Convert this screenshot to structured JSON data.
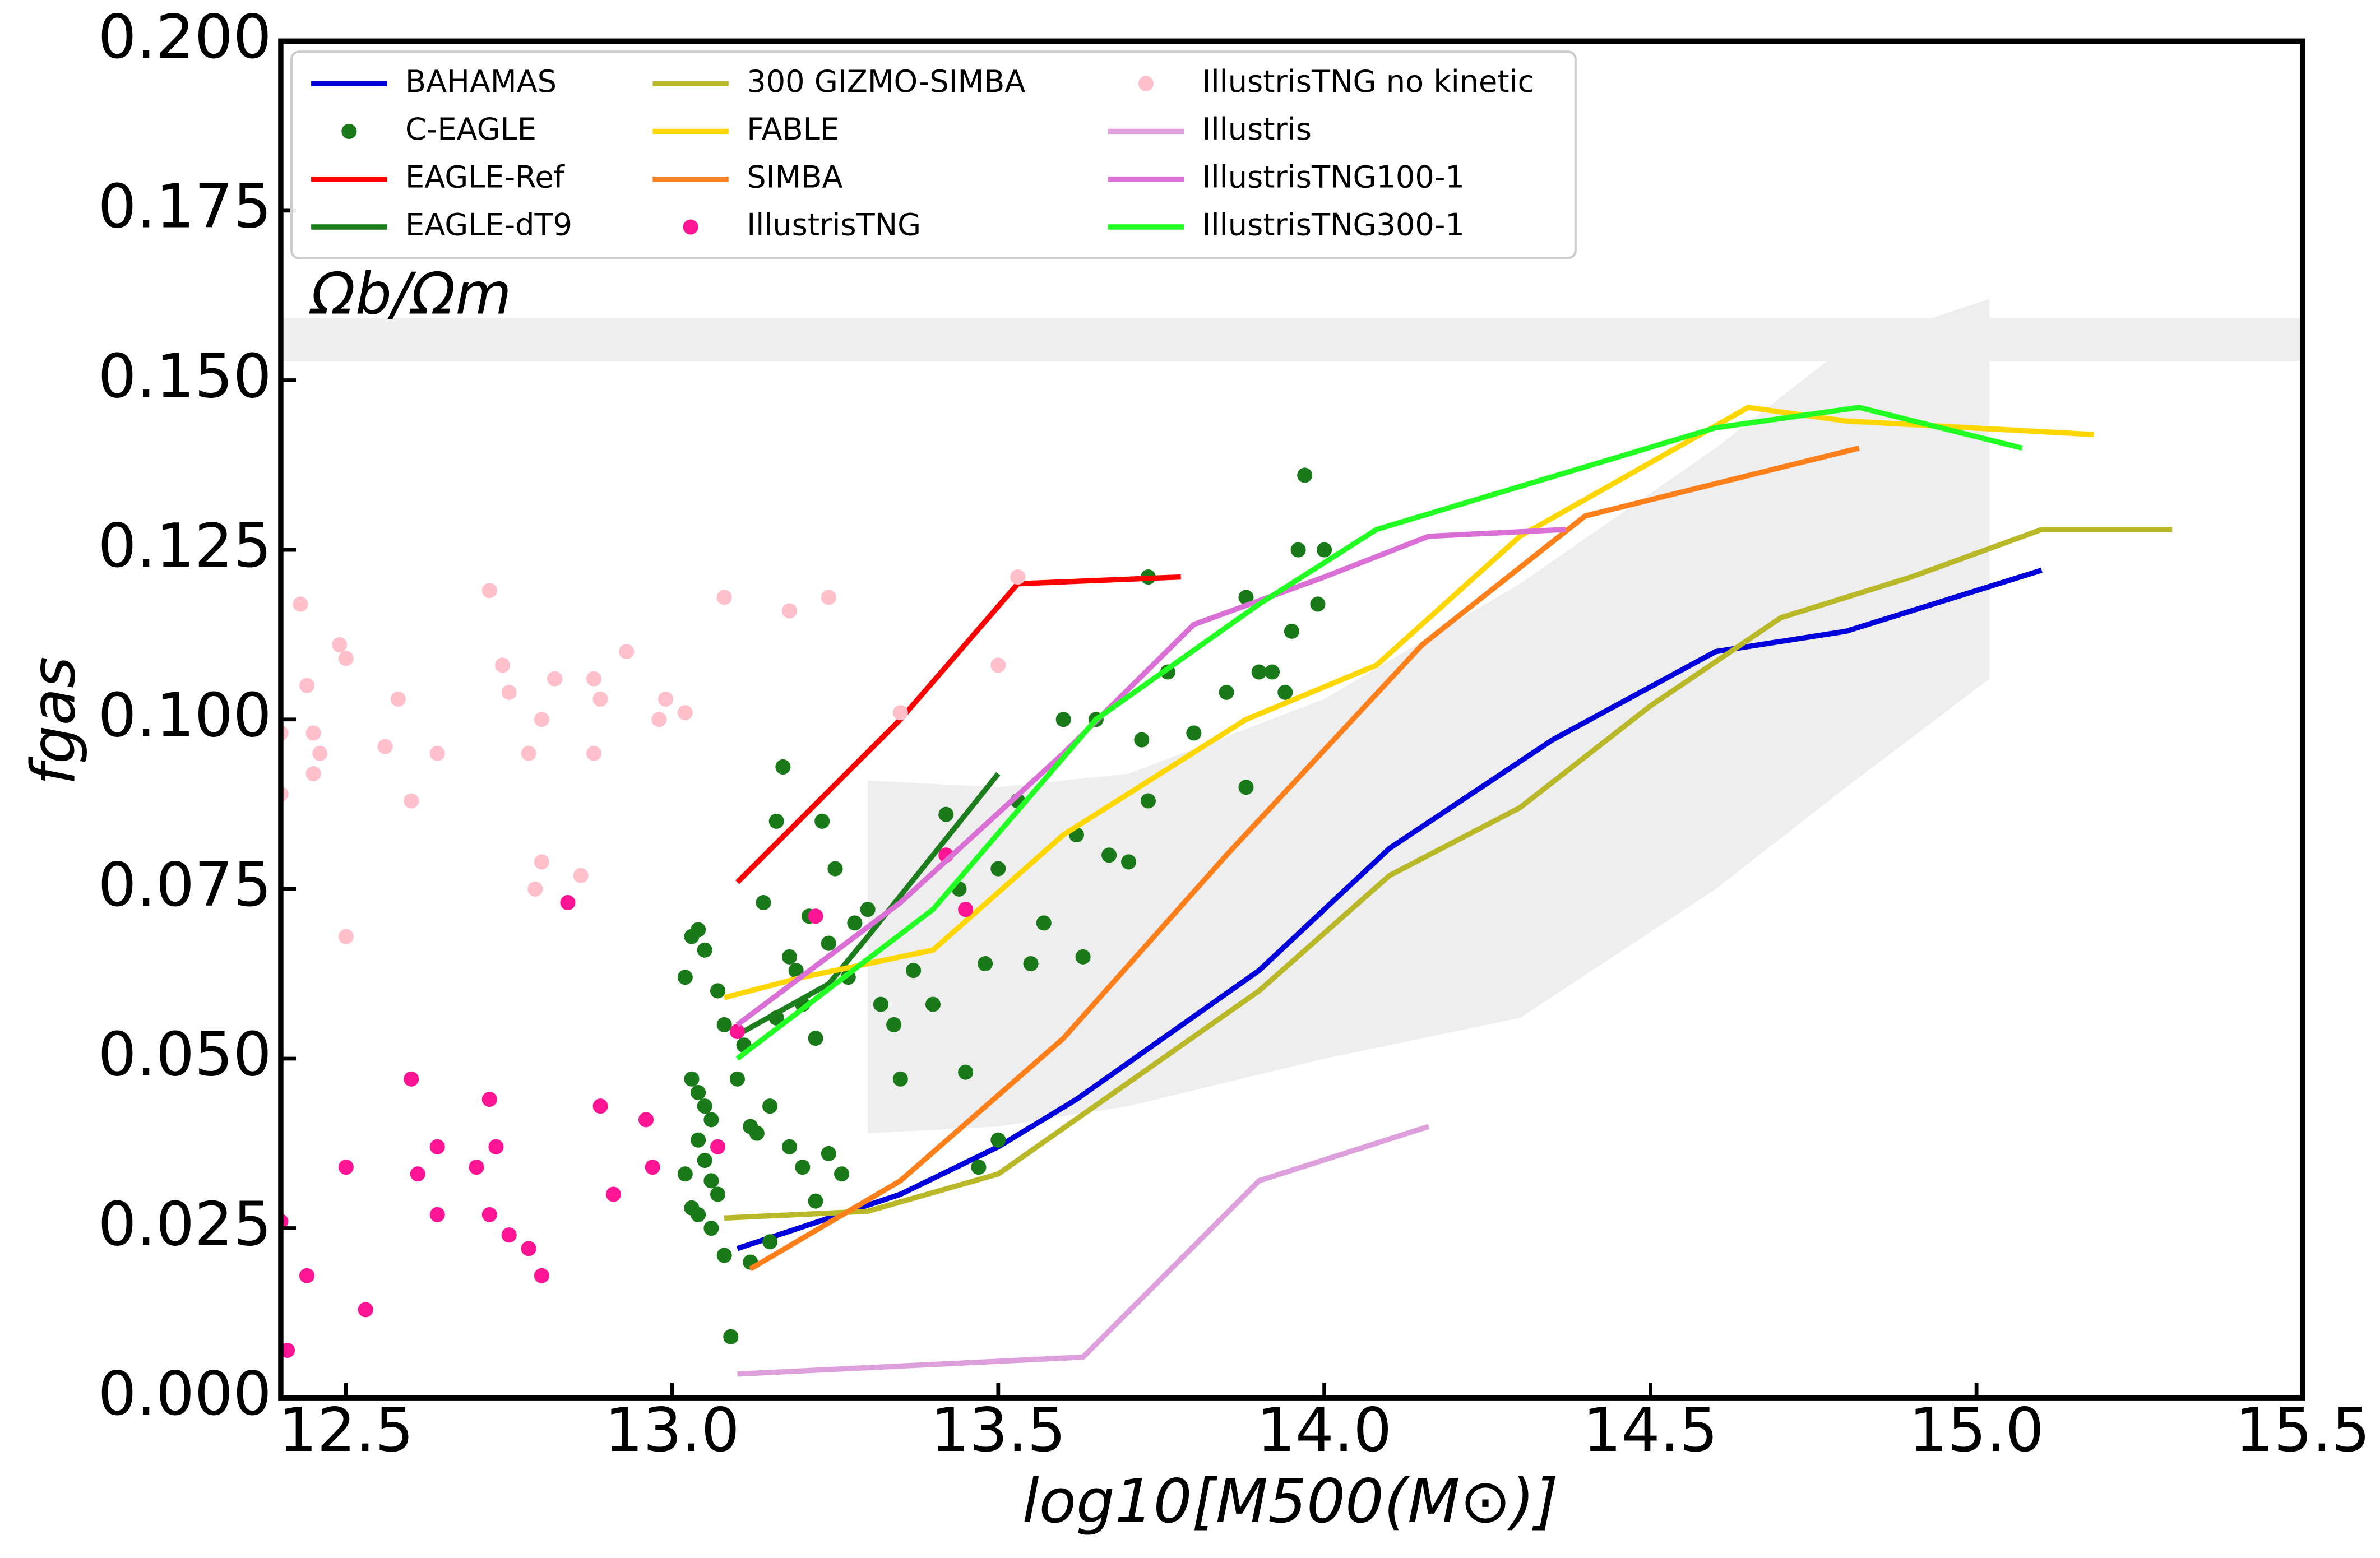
{
  "chart_data": {
    "type": "line",
    "xlabel": "log10[M500(M⊙)]",
    "ylabel": "fgas",
    "xlim": [
      12.4,
      15.5
    ],
    "ylim": [
      0,
      0.2
    ],
    "xticks": [
      12.5,
      {
        "value": 13.0,
        "label": "13.0"
      },
      13.5,
      {
        "value": 14.0,
        "label": "14.0"
      },
      14.5,
      {
        "value": 15.0,
        "label": "15.0"
      },
      15.5
    ],
    "yticks": [
      {
        "value": 0,
        "label": "0.000"
      },
      {
        "value": 0.025,
        "label": "0.025"
      },
      {
        "value": 0.05,
        "label": "0.050"
      },
      {
        "value": 0.075,
        "label": "0.075"
      },
      {
        "value": 0.1,
        "label": "0.100"
      },
      {
        "value": 0.125,
        "label": "0.125"
      },
      {
        "value": 0.15,
        "label": "0.150"
      },
      {
        "value": 0.175,
        "label": "0.175"
      },
      {
        "value": 0.2,
        "label": "0.200"
      }
    ],
    "legend": "upper left",
    "omega_band": {
      "label": "Ωb/Ωm",
      "values": [
        0.1528,
        0.1592
      ],
      "color": "#eeeeee"
    },
    "shaded_region": {
      "color": "#eeeeee",
      "x": [
        13.3,
        13.5,
        13.7,
        14.0,
        14.3,
        14.6,
        14.8,
        15.02
      ],
      "lower": [
        0.039,
        0.04,
        0.043,
        0.05,
        0.056,
        0.075,
        0.09,
        0.106
      ],
      "upper": [
        0.091,
        0.09,
        0.092,
        0.103,
        0.12,
        0.14,
        0.155,
        0.162
      ]
    },
    "series": [
      {
        "name": "BAHAMAS",
        "kind": "line",
        "color": "#0000dd",
        "x": [
          13.1,
          13.35,
          13.5,
          13.62,
          13.9,
          14.1,
          14.35,
          14.6,
          14.8,
          15.1
        ],
        "values": [
          0.022,
          0.03,
          0.037,
          0.044,
          0.063,
          0.081,
          0.097,
          0.11,
          0.113,
          0.122
        ]
      },
      {
        "name": "C-EAGLE",
        "kind": "points",
        "color": "#1a7a1a",
        "x": [
          13.02,
          13.03,
          13.04,
          13.05,
          13.03,
          13.04,
          13.05,
          13.06,
          13.04,
          13.05,
          13.06,
          13.02,
          13.03,
          13.04,
          13.06,
          13.07,
          13.08,
          13.09,
          13.12,
          13.15,
          13.07,
          13.08,
          13.1,
          13.11,
          13.12,
          13.13,
          13.15,
          13.16,
          13.14,
          13.16,
          13.17,
          13.18,
          13.19,
          13.2,
          13.21,
          13.22,
          13.23,
          13.24,
          13.25,
          13.27,
          13.18,
          13.2,
          13.22,
          13.24,
          13.26,
          13.28,
          13.3,
          13.32,
          13.34,
          13.35,
          13.37,
          13.4,
          13.42,
          13.44,
          13.45,
          13.48,
          13.5,
          13.53,
          13.55,
          13.57,
          13.6,
          13.62,
          13.63,
          13.65,
          13.67,
          13.7,
          13.72,
          13.73,
          13.76,
          13.8,
          13.85,
          13.88,
          13.88,
          13.9,
          13.92,
          13.94,
          13.95,
          13.96,
          13.97,
          13.99,
          14.0,
          13.47,
          13.5,
          13.73
        ],
        "values": [
          0.062,
          0.068,
          0.069,
          0.066,
          0.047,
          0.045,
          0.043,
          0.041,
          0.038,
          0.035,
          0.032,
          0.033,
          0.028,
          0.027,
          0.025,
          0.03,
          0.021,
          0.009,
          0.02,
          0.023,
          0.06,
          0.055,
          0.047,
          0.052,
          0.04,
          0.039,
          0.043,
          0.056,
          0.073,
          0.085,
          0.093,
          0.065,
          0.063,
          0.058,
          0.071,
          0.053,
          0.085,
          0.067,
          0.078,
          0.062,
          0.037,
          0.034,
          0.029,
          0.036,
          0.033,
          0.07,
          0.072,
          0.058,
          0.055,
          0.047,
          0.063,
          0.058,
          0.086,
          0.075,
          0.048,
          0.064,
          0.078,
          0.088,
          0.064,
          0.07,
          0.1,
          0.083,
          0.065,
          0.1,
          0.08,
          0.079,
          0.097,
          0.088,
          0.107,
          0.098,
          0.104,
          0.09,
          0.118,
          0.107,
          0.107,
          0.104,
          0.113,
          0.125,
          0.136,
          0.117,
          0.125,
          0.034,
          0.038,
          0.121
        ]
      },
      {
        "name": "EAGLE-Ref",
        "kind": "line",
        "color": "#ff0000",
        "x": [
          13.1,
          13.35,
          13.53,
          13.78
        ],
        "values": [
          0.076,
          0.1,
          0.12,
          0.121
        ]
      },
      {
        "name": "EAGLE-dT9",
        "kind": "line",
        "color": "#1b7d1b",
        "x": [
          13.1,
          13.24,
          13.3,
          13.5
        ],
        "values": [
          0.0535,
          0.061,
          0.068,
          0.092
        ]
      },
      {
        "name": "300 GIZMO-SIMBA",
        "kind": "line",
        "color": "#b8b828",
        "x": [
          13.08,
          13.3,
          13.5,
          13.9,
          14.1,
          14.3,
          14.5,
          14.7,
          14.9,
          15.1,
          15.3
        ],
        "values": [
          0.0265,
          0.0275,
          0.033,
          0.06,
          0.077,
          0.087,
          0.102,
          0.115,
          0.121,
          0.128,
          0.128
        ]
      },
      {
        "name": "FABLE",
        "kind": "line",
        "color": "#ffd700",
        "x": [
          13.08,
          13.2,
          13.4,
          13.6,
          13.88,
          14.08,
          14.3,
          14.65,
          14.8,
          15.18
        ],
        "values": [
          0.059,
          0.062,
          0.066,
          0.083,
          0.1,
          0.108,
          0.127,
          0.146,
          0.144,
          0.142
        ]
      },
      {
        "name": "SIMBA",
        "kind": "line",
        "color": "#ff7f1a",
        "x": [
          13.12,
          13.35,
          13.6,
          13.85,
          14.15,
          14.4,
          14.82
        ],
        "values": [
          0.019,
          0.032,
          0.053,
          0.08,
          0.111,
          0.13,
          0.14
        ]
      },
      {
        "name": "IllustrisTNG",
        "kind": "points",
        "color": "#ff1493",
        "x": [
          12.4,
          12.41,
          12.44,
          12.5,
          12.53,
          12.6,
          12.61,
          12.64,
          12.64,
          12.7,
          12.72,
          12.72,
          12.73,
          12.75,
          12.78,
          12.8,
          12.84,
          12.89,
          12.91,
          12.96,
          12.97,
          13.07,
          13.1,
          13.22,
          13.42,
          13.45
        ],
        "values": [
          0.026,
          0.007,
          0.018,
          0.034,
          0.013,
          0.047,
          0.033,
          0.037,
          0.027,
          0.034,
          0.044,
          0.027,
          0.037,
          0.024,
          0.022,
          0.018,
          0.073,
          0.043,
          0.03,
          0.041,
          0.034,
          0.037,
          0.054,
          0.071,
          0.08,
          0.072
        ]
      },
      {
        "name": "IllustrisTNG no kinetic",
        "kind": "points",
        "color": "#ffc0cb",
        "x": [
          12.4,
          12.4,
          12.43,
          12.44,
          12.45,
          12.46,
          12.45,
          12.49,
          12.5,
          12.5,
          12.56,
          12.58,
          12.6,
          12.64,
          12.72,
          12.74,
          12.75,
          12.78,
          12.79,
          12.8,
          12.8,
          12.82,
          12.86,
          12.88,
          12.88,
          12.89,
          12.93,
          12.98,
          12.99,
          13.02,
          13.08,
          13.18,
          13.24,
          13.35,
          13.5,
          13.53
        ],
        "values": [
          0.089,
          0.098,
          0.117,
          0.105,
          0.098,
          0.095,
          0.092,
          0.111,
          0.109,
          0.068,
          0.096,
          0.103,
          0.088,
          0.095,
          0.119,
          0.108,
          0.104,
          0.095,
          0.075,
          0.1,
          0.079,
          0.106,
          0.077,
          0.095,
          0.106,
          0.103,
          0.11,
          0.1,
          0.103,
          0.101,
          0.118,
          0.116,
          0.118,
          0.101,
          0.108,
          0.121
        ]
      },
      {
        "name": "Illustris",
        "kind": "line",
        "color": "#dda0dd",
        "x": [
          13.1,
          13.63,
          13.9,
          14.16
        ],
        "values": [
          0.0035,
          0.006,
          0.032,
          0.04
        ]
      },
      {
        "name": "IllustrisTNG100-1",
        "kind": "line",
        "color": "#da70d6",
        "x": [
          13.1,
          13.35,
          13.6,
          13.8,
          14.0,
          14.16,
          14.37
        ],
        "values": [
          0.055,
          0.073,
          0.095,
          0.114,
          0.121,
          0.127,
          0.128
        ]
      },
      {
        "name": "IllustrisTNG300-1",
        "kind": "line",
        "color": "#22ff22",
        "x": [
          13.1,
          13.4,
          13.65,
          13.9,
          14.08,
          14.6,
          14.82,
          15.07
        ],
        "values": [
          0.05,
          0.072,
          0.1,
          0.117,
          0.128,
          0.143,
          0.146,
          0.14
        ]
      }
    ]
  }
}
